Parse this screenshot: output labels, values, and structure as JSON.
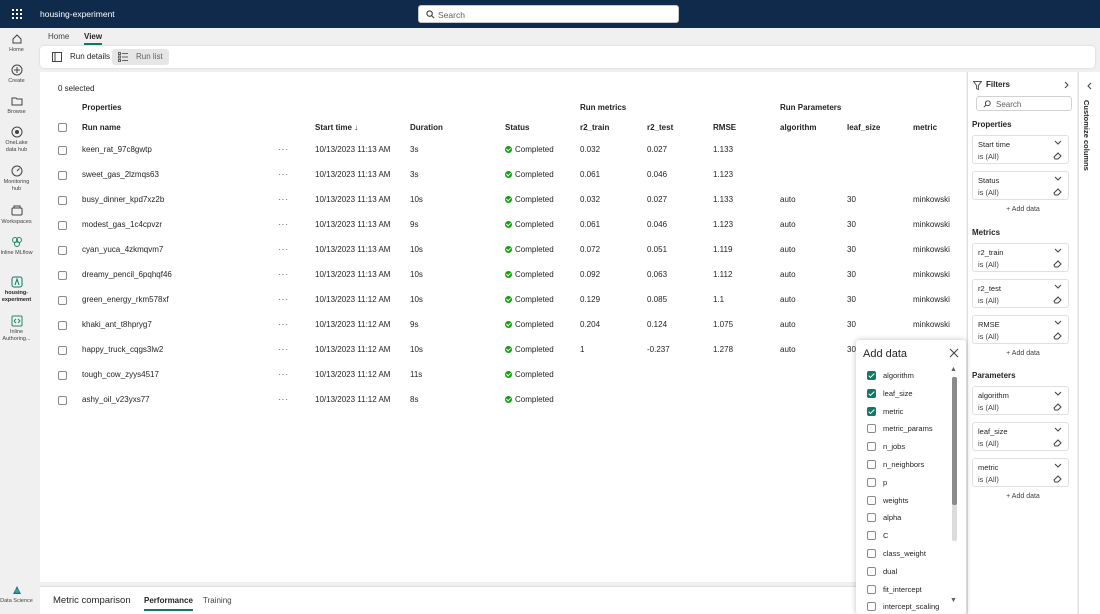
{
  "app": {
    "title": "housing-experiment"
  },
  "search": {
    "placeholder": "Search"
  },
  "rail": [
    {
      "label": "Home",
      "icon": "home-icon"
    },
    {
      "label": "Create",
      "icon": "create-icon"
    },
    {
      "label": "Browse",
      "icon": "browse-icon"
    },
    {
      "label": "OneLake data hub",
      "icon": "onelake-icon"
    },
    {
      "label": "Monitoring hub",
      "icon": "monitoring-icon"
    },
    {
      "label": "Workspaces",
      "icon": "workspaces-icon"
    },
    {
      "label": "Inline MLflow",
      "icon": "mlflow-icon"
    },
    {
      "label": "housing-experiment",
      "icon": "experiment-icon"
    },
    {
      "label": "Inline Authoring...",
      "icon": "authoring-icon"
    },
    {
      "label": "Data Science",
      "icon": "data-science-icon"
    }
  ],
  "nav": {
    "tabs": [
      "Home",
      "View"
    ]
  },
  "toolbar": {
    "run_details": "Run details",
    "run_list": "Run list"
  },
  "table": {
    "selected": "0 selected",
    "groups": {
      "properties": "Properties",
      "metrics": "Run metrics",
      "params": "Run Parameters"
    },
    "columns": {
      "run_name": "Run name",
      "start_time": "Start time",
      "duration": "Duration",
      "status": "Status",
      "r2_train": "r2_train",
      "r2_test": "r2_test",
      "rmse": "RMSE",
      "algorithm": "algorithm",
      "leaf_size": "leaf_size",
      "metric": "metric"
    },
    "rows": [
      {
        "name": "keen_rat_97c8gwtp",
        "start": "10/13/2023 11:13 AM",
        "duration": "3s",
        "status": "Completed",
        "r2_train": "0.032",
        "r2_test": "0.027",
        "rmse": "1.133",
        "algorithm": "",
        "leaf_size": "",
        "metric": ""
      },
      {
        "name": "sweet_gas_2lzmqs63",
        "start": "10/13/2023 11:13 AM",
        "duration": "3s",
        "status": "Completed",
        "r2_train": "0.061",
        "r2_test": "0.046",
        "rmse": "1.123",
        "algorithm": "",
        "leaf_size": "",
        "metric": ""
      },
      {
        "name": "busy_dinner_kpd7xz2b",
        "start": "10/13/2023 11:13 AM",
        "duration": "10s",
        "status": "Completed",
        "r2_train": "0.032",
        "r2_test": "0.027",
        "rmse": "1.133",
        "algorithm": "auto",
        "leaf_size": "30",
        "metric": "minkowski"
      },
      {
        "name": "modest_gas_1c4cpvzr",
        "start": "10/13/2023 11:13 AM",
        "duration": "9s",
        "status": "Completed",
        "r2_train": "0.061",
        "r2_test": "0.046",
        "rmse": "1.123",
        "algorithm": "auto",
        "leaf_size": "30",
        "metric": "minkowski"
      },
      {
        "name": "cyan_yuca_4zkmqvm7",
        "start": "10/13/2023 11:13 AM",
        "duration": "10s",
        "status": "Completed",
        "r2_train": "0.072",
        "r2_test": "0.051",
        "rmse": "1.119",
        "algorithm": "auto",
        "leaf_size": "30",
        "metric": "minkowski"
      },
      {
        "name": "dreamy_pencil_6pqhqf46",
        "start": "10/13/2023 11:13 AM",
        "duration": "10s",
        "status": "Completed",
        "r2_train": "0.092",
        "r2_test": "0.063",
        "rmse": "1.112",
        "algorithm": "auto",
        "leaf_size": "30",
        "metric": "minkowski"
      },
      {
        "name": "green_energy_rkm578xf",
        "start": "10/13/2023 11:12 AM",
        "duration": "10s",
        "status": "Completed",
        "r2_train": "0.129",
        "r2_test": "0.085",
        "rmse": "1.1",
        "algorithm": "auto",
        "leaf_size": "30",
        "metric": "minkowski"
      },
      {
        "name": "khaki_ant_t8hpryg7",
        "start": "10/13/2023 11:12 AM",
        "duration": "9s",
        "status": "Completed",
        "r2_train": "0.204",
        "r2_test": "0.124",
        "rmse": "1.075",
        "algorithm": "auto",
        "leaf_size": "30",
        "metric": "minkowski"
      },
      {
        "name": "happy_truck_cqgs3lw2",
        "start": "10/13/2023 11:12 AM",
        "duration": "10s",
        "status": "Completed",
        "r2_train": "1",
        "r2_test": "-0.237",
        "rmse": "1.278",
        "algorithm": "auto",
        "leaf_size": "30",
        "metric": ""
      },
      {
        "name": "tough_cow_zyys4517",
        "start": "10/13/2023 11:12 AM",
        "duration": "11s",
        "status": "Completed",
        "r2_train": "",
        "r2_test": "",
        "rmse": "",
        "algorithm": "",
        "leaf_size": "",
        "metric": ""
      },
      {
        "name": "ashy_oil_v23yxs77",
        "start": "10/13/2023 11:12 AM",
        "duration": "8s",
        "status": "Completed",
        "r2_train": "",
        "r2_test": "",
        "rmse": "",
        "algorithm": "",
        "leaf_size": "",
        "metric": ""
      }
    ]
  },
  "bottom": {
    "title": "Metric comparison",
    "tabs": [
      "Performance",
      "Training"
    ]
  },
  "filters": {
    "title": "Filters",
    "search_placeholder": "Search",
    "add_data": "+ Add data",
    "sections": [
      {
        "title": "Properties",
        "items": [
          {
            "name": "Start time",
            "value": "is (All)"
          },
          {
            "name": "Status",
            "value": "is (All)"
          }
        ]
      },
      {
        "title": "Metrics",
        "items": [
          {
            "name": "r2_train",
            "value": "is (All)"
          },
          {
            "name": "r2_test",
            "value": "is (All)"
          },
          {
            "name": "RMSE",
            "value": "is (All)"
          }
        ]
      },
      {
        "title": "Parameters",
        "items": [
          {
            "name": "algorithm",
            "value": "is (All)"
          },
          {
            "name": "leaf_size",
            "value": "is (All)"
          },
          {
            "name": "metric",
            "value": "is (All)"
          }
        ]
      }
    ]
  },
  "customize_columns": "Customize columns",
  "add_data_panel": {
    "title": "Add data",
    "items": [
      {
        "label": "algorithm",
        "checked": true
      },
      {
        "label": "leaf_size",
        "checked": true
      },
      {
        "label": "metric",
        "checked": true
      },
      {
        "label": "metric_params",
        "checked": false
      },
      {
        "label": "n_jobs",
        "checked": false
      },
      {
        "label": "n_neighbors",
        "checked": false
      },
      {
        "label": "p",
        "checked": false
      },
      {
        "label": "weights",
        "checked": false
      },
      {
        "label": "alpha",
        "checked": false
      },
      {
        "label": "C",
        "checked": false
      },
      {
        "label": "class_weight",
        "checked": false
      },
      {
        "label": "dual",
        "checked": false
      },
      {
        "label": "fit_intercept",
        "checked": false
      },
      {
        "label": "intercept_scaling",
        "checked": false
      }
    ]
  },
  "colors": {
    "topbar": "#0f2a4a",
    "accent": "#117865",
    "success": "#13a10e"
  }
}
